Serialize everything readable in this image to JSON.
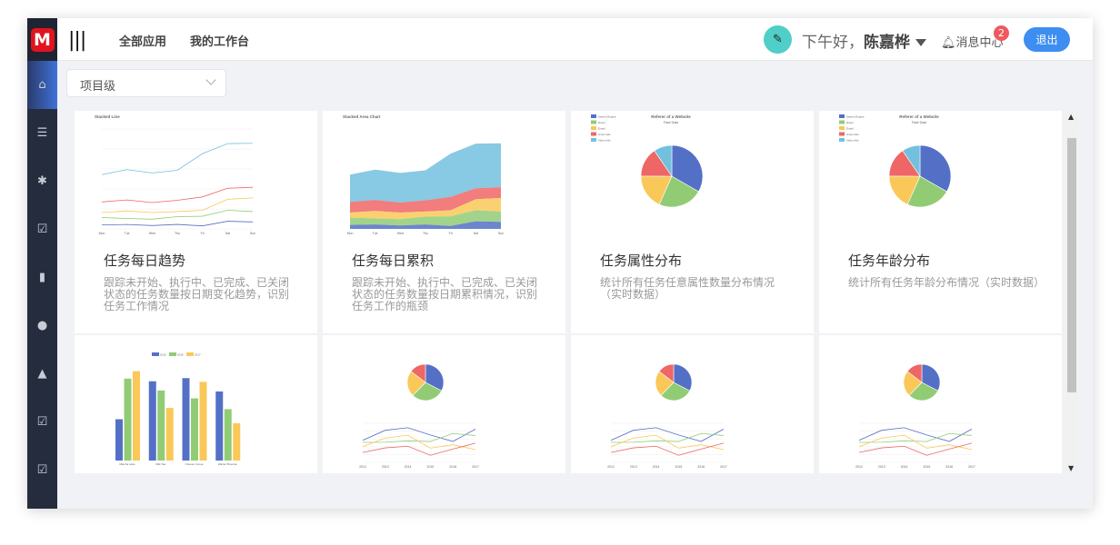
{
  "header": {
    "logo": "M",
    "menu_icon": "|||",
    "nav": [
      "全部应用",
      "我的工作台"
    ],
    "greeting": "下午好，",
    "user": "陈嘉桦",
    "messages": "消息中心",
    "message_count": "2",
    "logout": "退出"
  },
  "sidebar": {
    "items": [
      {
        "icon": "home-icon",
        "glyph": "⌂"
      },
      {
        "icon": "list-icon",
        "glyph": "☰"
      },
      {
        "icon": "bug-icon",
        "glyph": "✱"
      },
      {
        "icon": "clipboard-check-icon",
        "glyph": "☑"
      },
      {
        "icon": "bar-chart-icon",
        "glyph": "▮"
      },
      {
        "icon": "globe-icon",
        "glyph": "●"
      },
      {
        "icon": "user-icon",
        "glyph": "▲"
      },
      {
        "icon": "clipboard-check-icon",
        "glyph": "☑"
      },
      {
        "icon": "clipboard-check-icon",
        "glyph": "☑"
      }
    ]
  },
  "filter": {
    "value": "项目级"
  },
  "colors": {
    "blue": "#5470c6",
    "green": "#91cc75",
    "yellow": "#fac858",
    "red": "#ee6666",
    "cyan": "#73c0de",
    "accent": "#3d8ef0"
  },
  "cards": [
    {
      "title": "任务每日趋势",
      "desc": "跟踪未开始、执行中、已完成、已关闭状态的任务数量按日期变化趋势，识别任务工作情况",
      "thumb": {
        "type": "line",
        "label": "Stacked Line",
        "days": [
          "Mon",
          "Tue",
          "Wed",
          "Thu",
          "Fri",
          "Sat",
          "Sun"
        ],
        "series": [
          [
            120,
            132,
            101,
            134,
            90,
            230,
            210
          ],
          [
            340,
            314,
            292,
            368,
            380,
            560,
            520
          ],
          [
            490,
            540,
            490,
            520,
            560,
            890,
            930
          ],
          [
            810,
            870,
            790,
            860,
            960,
            1220,
            1250
          ],
          [
            1630,
            1780,
            1680,
            1760,
            2260,
            2560,
            2570
          ]
        ]
      }
    },
    {
      "title": "任务每日累积",
      "desc": "跟踪未开始、执行中、已完成、已关闭状态的任务数量按日期累积情况，识别任务工作的瓶颈",
      "thumb": {
        "type": "area",
        "label": "Stacked Area Chart",
        "days": [
          "Mon",
          "Tue",
          "Wed",
          "Thu",
          "Fri",
          "Sat",
          "Sun"
        ],
        "series": [
          [
            120,
            132,
            101,
            134,
            90,
            230,
            210
          ],
          [
            340,
            314,
            292,
            368,
            380,
            560,
            520
          ],
          [
            490,
            540,
            490,
            520,
            560,
            890,
            930
          ],
          [
            810,
            870,
            790,
            860,
            960,
            1220,
            1250
          ],
          [
            1630,
            1780,
            1680,
            1760,
            2260,
            2560,
            2570
          ]
        ]
      }
    },
    {
      "title": "任务属性分布",
      "desc": "统计所有任务任意属性数量分布情况（实时数据）",
      "thumb": {
        "type": "pie",
        "label": "Referer of a Website",
        "sub": "Fake Data",
        "names": [
          "Search Engine",
          "Direct",
          "Email",
          "Union Ads",
          "Video Ads"
        ],
        "values": [
          1048,
          735,
          580,
          484,
          300
        ]
      }
    },
    {
      "title": "任务年龄分布",
      "desc": "统计所有任务年龄分布情况（实时数据）",
      "thumb": {
        "type": "pie",
        "label": "Referer of a Website",
        "sub": "Fake Data",
        "names": [
          "Search Engine",
          "Direct",
          "Email",
          "Union Ads",
          "Video Ads"
        ],
        "values": [
          1048,
          735,
          580,
          484,
          300
        ]
      }
    },
    {
      "thumb": {
        "type": "bar",
        "years": [
          "2015",
          "2016",
          "2017"
        ],
        "cats": [
          "Matcha Latte",
          "Milk Tea",
          "Cheese Cocoa",
          "Walnut Brownie"
        ],
        "series": [
          [
            43.3,
            83.1,
            86.4,
            72.4
          ],
          [
            85.8,
            73.4,
            65.2,
            53.9
          ],
          [
            93.7,
            55.1,
            82.5,
            39.1
          ]
        ]
      }
    },
    {
      "thumb": {
        "type": "combo",
        "years": [
          "2012",
          "2013",
          "2014",
          "2015",
          "2016",
          "2017"
        ],
        "pie": [
          56.5,
          51.1,
          40.1,
          25.2
        ],
        "series": [
          [
            56.5,
            82.1,
            88.7,
            70.1,
            53.4,
            85.1
          ],
          [
            51.1,
            51.4,
            55.1,
            53.3,
            73.8,
            68.7
          ],
          [
            40.1,
            62.2,
            69.5,
            36.4,
            45.2,
            32.5
          ],
          [
            25.2,
            37.1,
            41.2,
            18,
            33.9,
            49.1
          ]
        ]
      }
    },
    {
      "thumb": {
        "type": "combo",
        "years": [
          "2012",
          "2013",
          "2014",
          "2015",
          "2016",
          "2017"
        ],
        "pie": [
          56.5,
          51.1,
          40.1,
          25.2
        ],
        "series": [
          [
            56.5,
            82.1,
            88.7,
            70.1,
            53.4,
            85.1
          ],
          [
            51.1,
            51.4,
            55.1,
            53.3,
            73.8,
            68.7
          ],
          [
            40.1,
            62.2,
            69.5,
            36.4,
            45.2,
            32.5
          ],
          [
            25.2,
            37.1,
            41.2,
            18,
            33.9,
            49.1
          ]
        ]
      }
    },
    {
      "thumb": {
        "type": "combo",
        "years": [
          "2012",
          "2013",
          "2014",
          "2015",
          "2016",
          "2017"
        ],
        "pie": [
          56.5,
          51.1,
          40.1,
          25.2
        ],
        "series": [
          [
            56.5,
            82.1,
            88.7,
            70.1,
            53.4,
            85.1
          ],
          [
            51.1,
            51.4,
            55.1,
            53.3,
            73.8,
            68.7
          ],
          [
            40.1,
            62.2,
            69.5,
            36.4,
            45.2,
            32.5
          ],
          [
            25.2,
            37.1,
            41.2,
            18,
            33.9,
            49.1
          ]
        ]
      }
    }
  ]
}
